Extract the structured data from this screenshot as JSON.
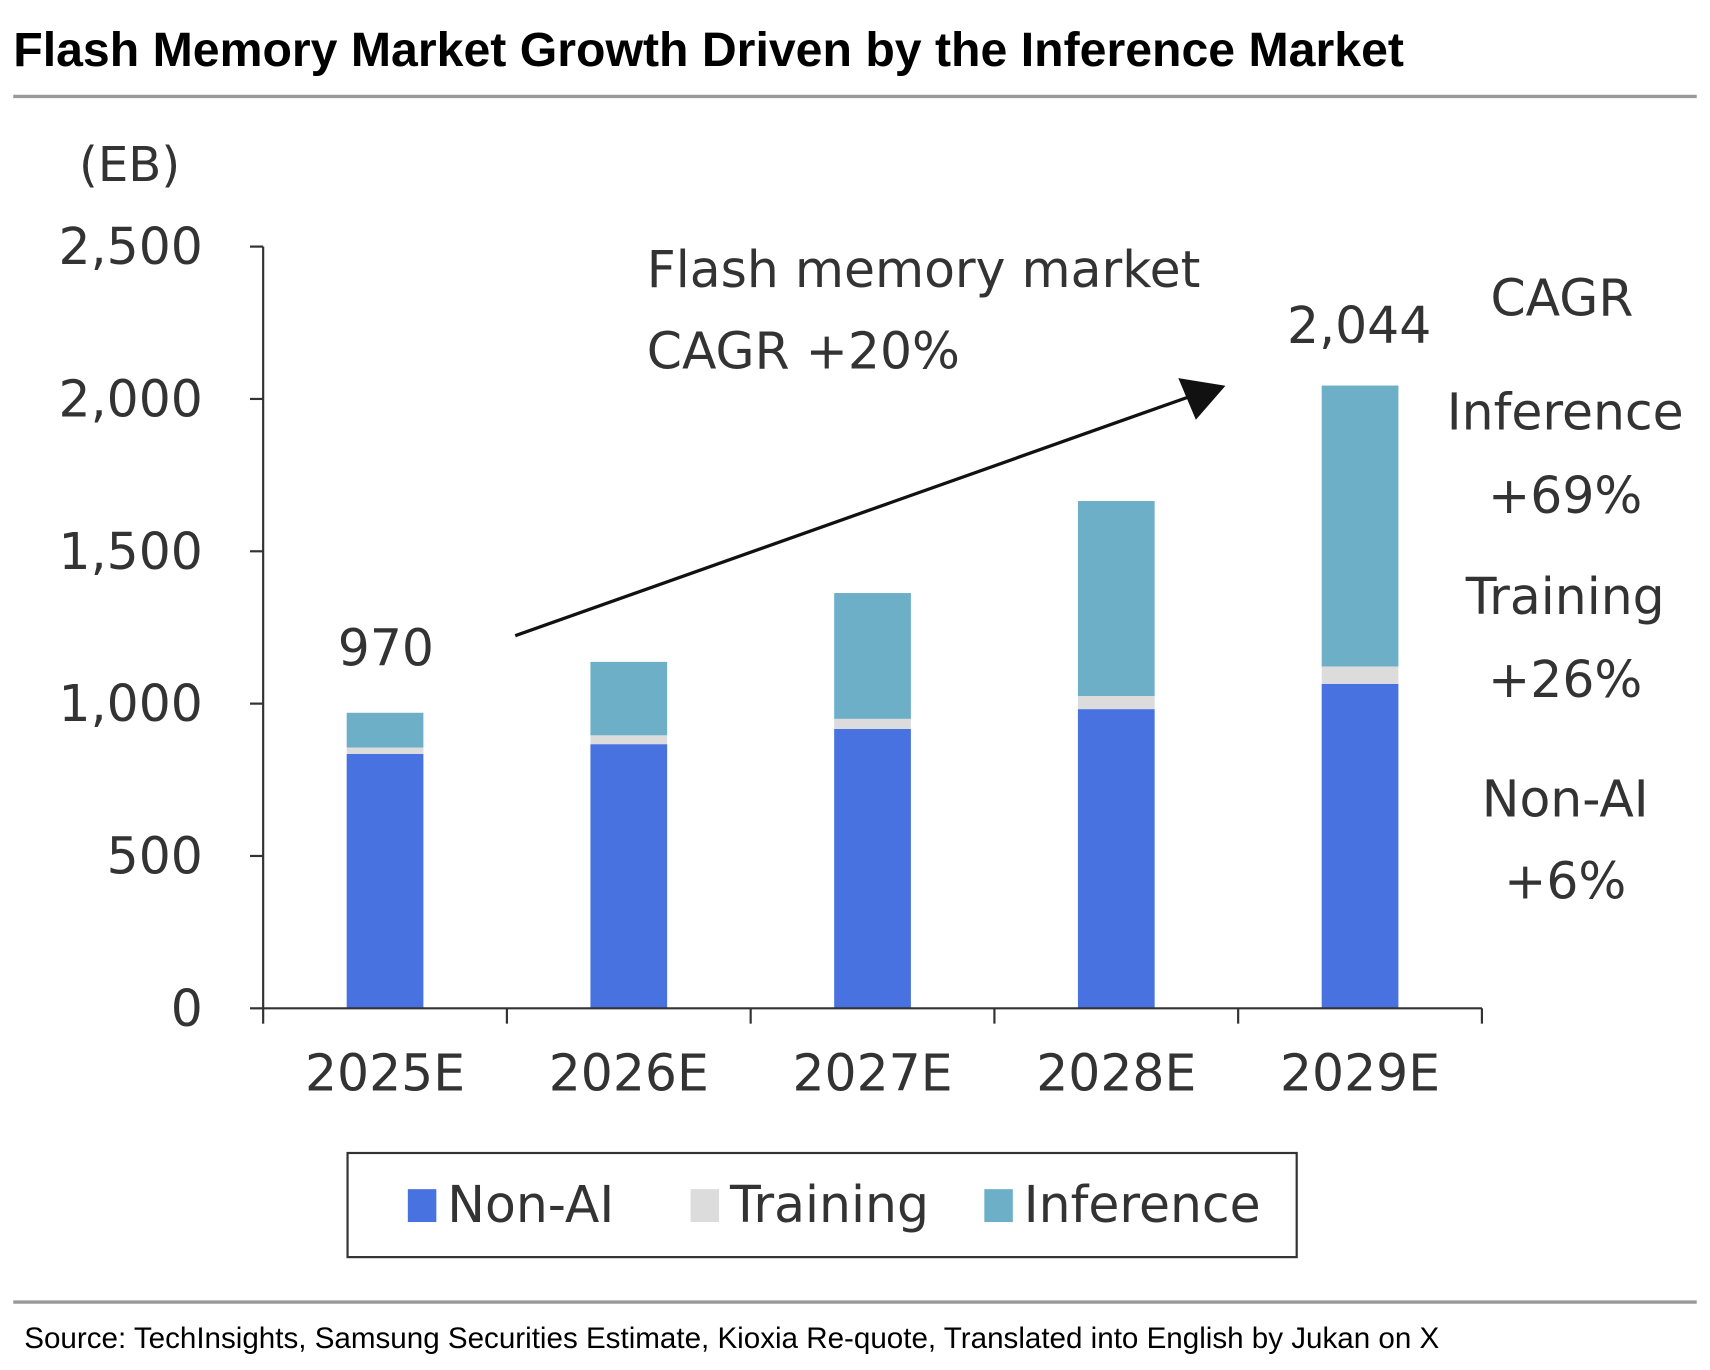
{
  "chart_data": {
    "type": "bar",
    "stacked": true,
    "title": "Flash Memory Market Growth Driven by the Inference Market",
    "ylabel": "(EB)",
    "xlabel": "",
    "ylim": [
      0,
      2500
    ],
    "yticks": [
      0,
      500,
      1000,
      1500,
      2000,
      2500
    ],
    "ytick_labels": [
      "0",
      "500",
      "1,000",
      "1,500",
      "2,000",
      "2,500"
    ],
    "categories": [
      "2025E",
      "2026E",
      "2027E",
      "2028E",
      "2029E"
    ],
    "series": [
      {
        "name": "Non-AI",
        "color": "#4772e0",
        "values": [
          835,
          867,
          917,
          982,
          1065
        ]
      },
      {
        "name": "Training",
        "color": "#dcdcdc",
        "values": [
          21,
          29,
          33,
          43,
          57
        ]
      },
      {
        "name": "Inference",
        "color": "#6eafc8",
        "values": [
          114,
          241,
          413,
          640,
          922
        ]
      }
    ],
    "totals_labels": {
      "first": "970",
      "last": "2,044"
    },
    "grid": false,
    "legend": "bottom",
    "annotations": {
      "market_line1": "Flash memory market",
      "market_line2": "CAGR +20%",
      "cagr_heading": "CAGR",
      "inference_label": "Inference",
      "inference_value": "+69%",
      "training_label": "Training",
      "training_value": "+26%",
      "nonai_label": "Non-AI",
      "nonai_value": "+6%"
    },
    "source": "Source: TechInsights, Samsung Securities Estimate, Kioxia Re-quote, Translated into English by Jukan on X"
  }
}
